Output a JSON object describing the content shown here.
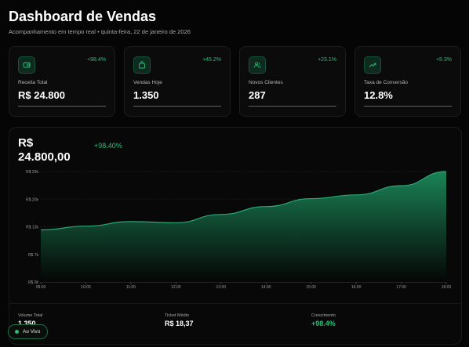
{
  "header": {
    "title": "Dashboard de Vendas",
    "subtitle": "Acompanhamento em tempo real • quinta-feira, 22 de janeiro de 2026"
  },
  "cards": [
    {
      "icon": "wallet-icon",
      "label": "Receita Total",
      "value": "R$ 24.800",
      "delta": "+98.4%"
    },
    {
      "icon": "shopping-bag-icon",
      "label": "Vendas Hoje",
      "value": "1.350",
      "delta": "+45.2%"
    },
    {
      "icon": "users-icon",
      "label": "Novos Clientes",
      "value": "287",
      "delta": "+23.1%"
    },
    {
      "icon": "trending-up-icon",
      "label": "Taxa de Conversão",
      "value": "12.8%",
      "delta": "+5.3%"
    }
  ],
  "panel": {
    "value": "R$ 24.800,00",
    "delta": "+98.40%"
  },
  "chart_data": {
    "type": "area",
    "x": [
      "09:00",
      "10:00",
      "11:00",
      "12:00",
      "13:00",
      "14:00",
      "15:00",
      "16:00",
      "17:00",
      "18:00"
    ],
    "values": [
      12500,
      13400,
      14500,
      14200,
      16200,
      18100,
      20000,
      20900,
      23100,
      26500
    ],
    "y_ticks": [
      "R$ 0k",
      "R$ 7k",
      "R$ 13k",
      "R$ 20k",
      "R$ 26k"
    ],
    "ylim": [
      0,
      26500
    ],
    "grid": true,
    "colors": {
      "line": "#2aa876",
      "fill_top": "#1b8a5a",
      "fill_bottom": "#050505"
    }
  },
  "stats": [
    {
      "label": "Volume Total",
      "value": "1.350",
      "green": false
    },
    {
      "label": "Ticket Médio",
      "value": "R$ 18,37",
      "green": false
    },
    {
      "label": "Crescimento",
      "value": "+98.4%",
      "green": true
    }
  ],
  "live_badge": {
    "label": "Ao Vivo"
  },
  "colors": {
    "accent": "#29c07a",
    "background": "#050505",
    "card": "#0b0b0b"
  }
}
